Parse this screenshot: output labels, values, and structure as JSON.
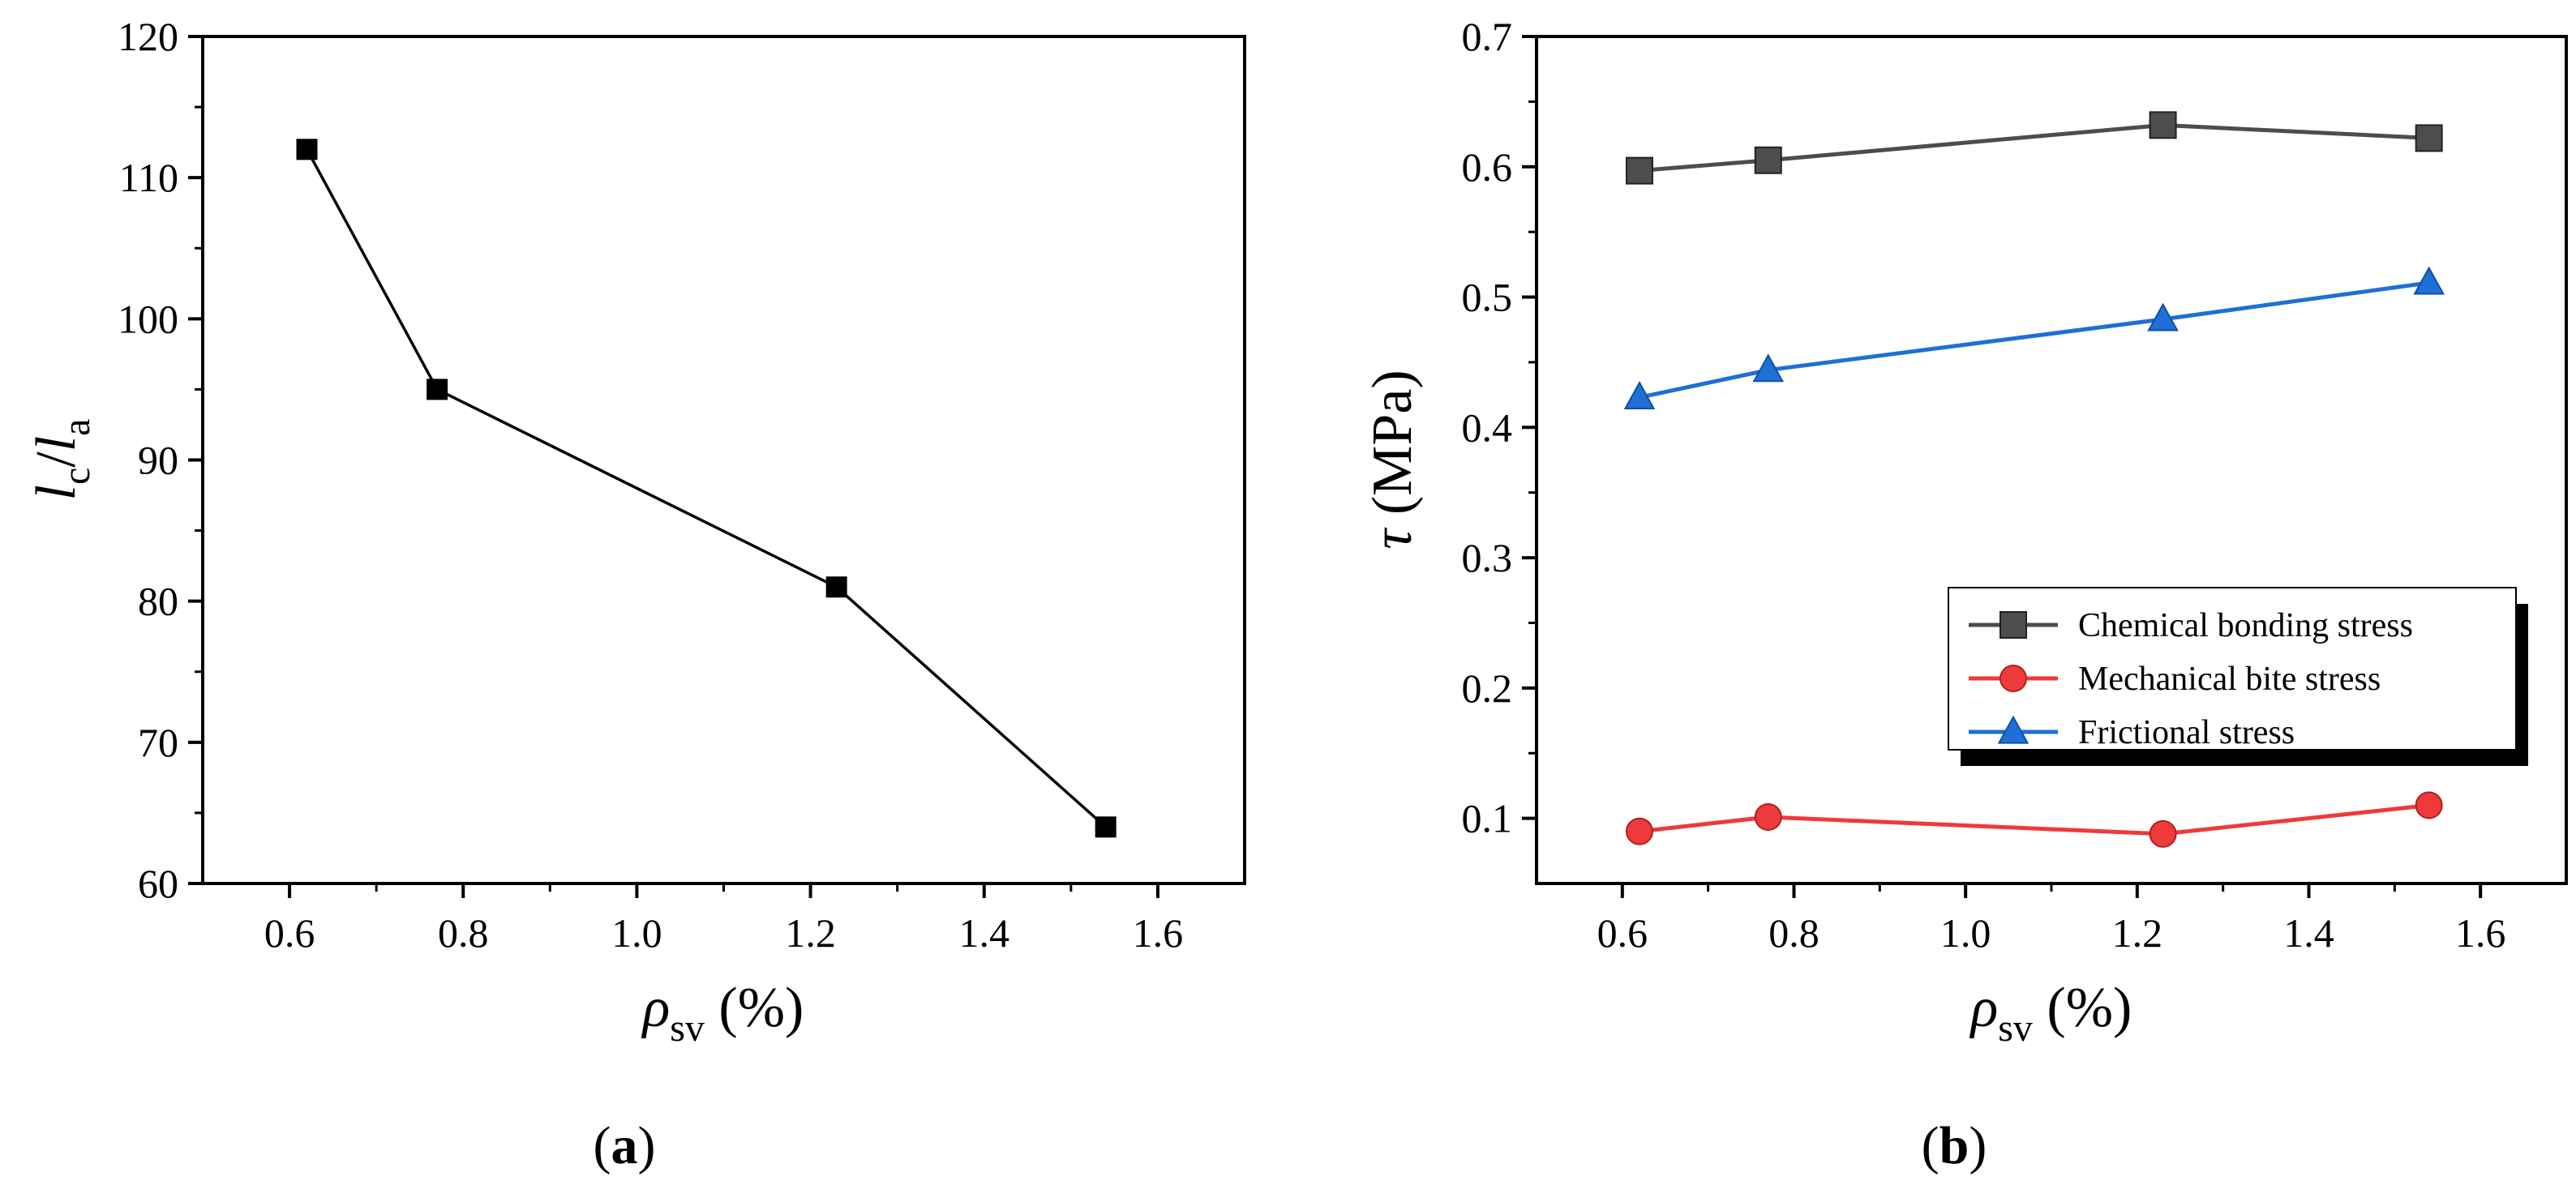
{
  "chart_data": [
    {
      "type": "line",
      "panel_label": {
        "open": "(",
        "letter": "a",
        "close": ")"
      },
      "xlabel": {
        "symbol": "ρ",
        "subscript": "sv",
        "unit": " (%)"
      },
      "ylabel": {
        "base1": "l",
        "sub1": "c",
        "slash": "/",
        "base2": "l",
        "sub2": "a"
      },
      "xlim": [
        0.5,
        1.7
      ],
      "ylim": [
        60,
        120
      ],
      "xticks": [
        0.6,
        0.8,
        1.0,
        1.2,
        1.4,
        1.6
      ],
      "xtick_labels": [
        "0.6",
        "0.8",
        "1.0",
        "1.2",
        "1.4",
        "1.6"
      ],
      "yticks": [
        60,
        70,
        80,
        90,
        100,
        110,
        120
      ],
      "ytick_labels": [
        "60",
        "70",
        "80",
        "90",
        "100",
        "110",
        "120"
      ],
      "series": [
        {
          "name": "lc/la",
          "color": "#000000",
          "marker": "square",
          "x": [
            0.62,
            0.77,
            1.23,
            1.54
          ],
          "values": [
            112,
            95,
            81,
            64
          ]
        }
      ]
    },
    {
      "type": "line",
      "panel_label": {
        "open": "(",
        "letter": "b",
        "close": ")"
      },
      "xlabel": {
        "symbol": "ρ",
        "subscript": "sv",
        "unit": " (%)"
      },
      "ylabel": {
        "symbol": "τ",
        "unit": " (MPa)"
      },
      "xlim": [
        0.5,
        1.7
      ],
      "ylim": [
        0.05,
        0.7
      ],
      "xticks": [
        0.6,
        0.8,
        1.0,
        1.2,
        1.4,
        1.6
      ],
      "xtick_labels": [
        "0.6",
        "0.8",
        "1.0",
        "1.2",
        "1.4",
        "1.6"
      ],
      "yticks": [
        0.1,
        0.2,
        0.3,
        0.4,
        0.5,
        0.6,
        0.7
      ],
      "ytick_labels": [
        "0.1",
        "0.2",
        "0.3",
        "0.4",
        "0.5",
        "0.6",
        "0.7"
      ],
      "legend_position": "lower-right",
      "series": [
        {
          "name": "Chemical bonding stress",
          "color": "#4d4d4d",
          "marker": "square",
          "x": [
            0.62,
            0.77,
            1.23,
            1.54
          ],
          "values": [
            0.597,
            0.605,
            0.632,
            0.622
          ]
        },
        {
          "name": "Mechanical bite stress",
          "color": "#ee3a3a",
          "marker": "circle",
          "x": [
            0.62,
            0.77,
            1.23,
            1.54
          ],
          "values": [
            0.09,
            0.101,
            0.088,
            0.11
          ]
        },
        {
          "name": "Frictional stress",
          "color": "#1f6fd6",
          "marker": "triangle",
          "x": [
            0.62,
            0.77,
            1.23,
            1.54
          ],
          "values": [
            0.423,
            0.444,
            0.483,
            0.511
          ]
        }
      ]
    }
  ]
}
